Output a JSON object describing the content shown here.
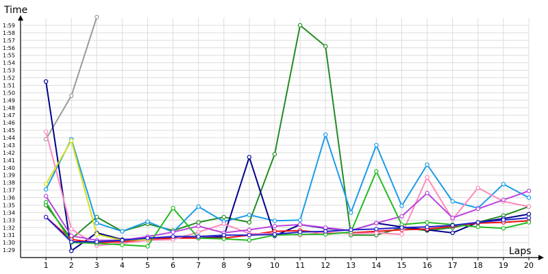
{
  "chart_data": {
    "type": "line",
    "xlabel": "Laps",
    "ylabel": "Time",
    "x": [
      1,
      2,
      3,
      4,
      5,
      6,
      7,
      8,
      9,
      10,
      11,
      12,
      13,
      14,
      15,
      16,
      17,
      18,
      19,
      20
    ],
    "xlim": [
      0,
      20
    ],
    "ylim": [
      "1:28",
      "2:00"
    ],
    "y_ticks": [
      "1:29",
      "1:30",
      "1:31",
      "1:32",
      "1:33",
      "1:34",
      "1:35",
      "1:36",
      "1:37",
      "1:38",
      "1:39",
      "1:40",
      "1:41",
      "1:42",
      "1:43",
      "1:44",
      "1:45",
      "1:46",
      "1:47",
      "1:48",
      "1:49",
      "1:50",
      "1:51",
      "1:52",
      "1:53",
      "1:54",
      "1:55",
      "1:56",
      "1:57",
      "1:58",
      "1:59"
    ],
    "grid": true,
    "series": [
      {
        "color": "#999999",
        "values": [
          103.8,
          109.6,
          120.1,
          null,
          null,
          null,
          null,
          null,
          null,
          null,
          null,
          null,
          null,
          null,
          null,
          null,
          null,
          null,
          null,
          null
        ]
      },
      {
        "color": "#228B22",
        "values": [
          95.0,
          90.5,
          93.4,
          91.5,
          92.5,
          91.6,
          92.7,
          93.4,
          92.7,
          101.8,
          119.0,
          116.2,
          91.0,
          91.0,
          92.0,
          91.6,
          92.0,
          92.7,
          93.6,
          94.8
        ]
      },
      {
        "color": "#1A9BE8",
        "values": [
          97.1,
          103.8,
          92.6,
          91.5,
          92.8,
          91.4,
          94.8,
          92.8,
          93.7,
          92.9,
          93.0,
          104.4,
          94.0,
          103.0,
          94.9,
          100.4,
          95.5,
          94.6,
          97.8,
          96.0
        ]
      },
      {
        "color": "#00008B",
        "values": [
          111.5,
          88.9,
          91.3,
          90.4,
          90.6,
          90.7,
          90.6,
          90.8,
          101.4,
          90.9,
          92.4,
          91.9,
          91.6,
          92.6,
          92.1,
          91.7,
          91.3,
          92.7,
          93.2,
          93.8
        ]
      },
      {
        "color": "#EE1111",
        "values": [
          93.4,
          90.4,
          90.0,
          90.1,
          90.4,
          90.6,
          90.6,
          90.6,
          91.0,
          91.5,
          91.6,
          91.3,
          91.3,
          91.5,
          91.7,
          91.8,
          92.2,
          92.6,
          92.7,
          92.9
        ]
      },
      {
        "color": "#FF88BB",
        "values": [
          104.8,
          91.8,
          89.6,
          89.9,
          90.3,
          90.4,
          91.4,
          92.5,
          91.2,
          91.2,
          91.0,
          91.4,
          91.2,
          91.3,
          91.1,
          98.7,
          93.1,
          97.3,
          95.5,
          94.8
        ]
      },
      {
        "color": "#BB44DD",
        "values": [
          96.2,
          90.9,
          90.3,
          90.3,
          90.8,
          91.4,
          92.2,
          91.3,
          91.7,
          92.2,
          92.4,
          92.0,
          91.6,
          92.6,
          93.5,
          96.6,
          93.3,
          94.5,
          95.7,
          96.9
        ]
      },
      {
        "color": "#22BB22",
        "values": [
          95.4,
          90.0,
          89.9,
          89.7,
          89.5,
          94.6,
          90.6,
          90.5,
          90.3,
          91.0,
          91.1,
          91.1,
          91.4,
          99.5,
          92.4,
          92.7,
          92.4,
          92.1,
          91.9,
          92.7
        ]
      },
      {
        "color": "#D4E21A",
        "values": [
          97.8,
          103.6,
          91.1,
          90.3,
          90.4,
          null,
          null,
          null,
          null,
          null,
          null,
          null,
          null,
          null,
          null,
          null,
          null,
          null,
          null,
          null
        ]
      },
      {
        "color": "#2222CC",
        "values": [
          93.4,
          90.1,
          90.1,
          90.3,
          90.6,
          90.8,
          90.8,
          91.0,
          91.0,
          91.1,
          91.4,
          91.5,
          91.7,
          91.8,
          92.0,
          92.1,
          92.3,
          92.7,
          93.0,
          93.3
        ]
      }
    ]
  }
}
